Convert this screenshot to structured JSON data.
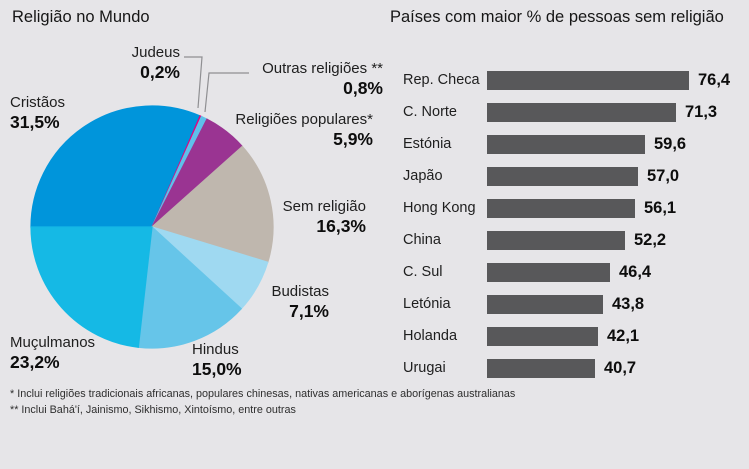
{
  "page": {
    "background": "#E6E5E8"
  },
  "left_chart": {
    "title": "Religião no Mundo"
  },
  "right_chart": {
    "title": "Países com maior % de pessoas sem religião"
  },
  "footnotes": [
    "* Inclui religiões tradicionais africanas, populares chinesas, nativas americanas e aborígenas australianas",
    "** Inclui Bahá'í, Jainismo, Sikhismo, Xintoísmo, entre outras"
  ],
  "chart_data": [
    {
      "type": "pie",
      "title": "Religião no Mundo",
      "start_angle_deg_from_top": -90,
      "direction": "clockwise",
      "slices": [
        {
          "label": "Cristãos",
          "value": 31.5,
          "value_label": "31,5%",
          "color": "#0095DB"
        },
        {
          "label": "Judeus",
          "value": 0.2,
          "value_label": "0,2%",
          "color": "#E5007E"
        },
        {
          "label": "Outras religiões **",
          "value": 0.8,
          "value_label": "0,8%",
          "color": "#5FC0EA"
        },
        {
          "label": "Religiões populares*",
          "value": 5.9,
          "value_label": "5,9%",
          "color": "#9A3492"
        },
        {
          "label": "Sem religião",
          "value": 16.3,
          "value_label": "16,3%",
          "color": "#BFB7AE"
        },
        {
          "label": "Budistas",
          "value": 7.1,
          "value_label": "7,1%",
          "color": "#9FD9F1"
        },
        {
          "label": "Hindus",
          "value": 15.0,
          "value_label": "15,0%",
          "color": "#66C5E9"
        },
        {
          "label": "Muçulmanos",
          "value": 23.2,
          "value_label": "23,2%",
          "color": "#15B9E5"
        }
      ]
    },
    {
      "type": "bar",
      "title": "Países com maior % de pessoas sem religião",
      "orientation": "horizontal",
      "categories": [
        "Rep. Checa",
        "C. Norte",
        "Estónia",
        "Japão",
        "Hong Kong",
        "China",
        "C. Sul",
        "Letónia",
        "Holanda",
        "Urugai"
      ],
      "values": [
        76.4,
        71.3,
        59.6,
        57.0,
        56.1,
        52.2,
        46.4,
        43.8,
        42.1,
        40.7
      ],
      "value_labels": [
        "76,4",
        "71,3",
        "59,6",
        "57,0",
        "56,1",
        "52,2",
        "46,4",
        "43,8",
        "42,1",
        "40,7"
      ],
      "bar_color": "#58585A",
      "xlim": [
        0,
        80
      ],
      "grid": false,
      "legend": false
    }
  ]
}
